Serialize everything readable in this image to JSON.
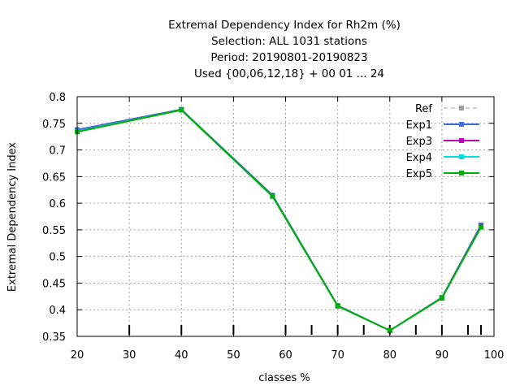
{
  "chart_data": {
    "type": "line",
    "title_lines": [
      "Extremal Dependency Index  for Rh2m (%)",
      "Selection: ALL    1031 stations",
      "Period: 20190801-20190823",
      "Used {00,06,12,18} + 00 01 ... 24"
    ],
    "xlabel": "classes %",
    "ylabel": "Extremal Dependency Index",
    "xlim": [
      20,
      100
    ],
    "ylim": [
      0.35,
      0.8
    ],
    "x_ticks": [
      20,
      30,
      40,
      50,
      60,
      70,
      80,
      90,
      100
    ],
    "x_tick_labels": [
      "20",
      "30",
      "40",
      "50",
      "60",
      "70",
      "80",
      "90",
      "100"
    ],
    "y_ticks": [
      0.35,
      0.4,
      0.45,
      0.5,
      0.55,
      0.6,
      0.65,
      0.7,
      0.75,
      0.8
    ],
    "y_tick_labels": [
      "0.35",
      "0.4",
      "0.45",
      "0.5",
      "0.55",
      "0.6",
      "0.65",
      "0.7",
      "0.75",
      "0.8"
    ],
    "class_marks_x": [
      30,
      40,
      50,
      60,
      65,
      70,
      75,
      80,
      85,
      90,
      95,
      97.5
    ],
    "grid": true,
    "legend_position": "top-right",
    "x": [
      20,
      40,
      57.5,
      70,
      80,
      90,
      97.5
    ],
    "series": [
      {
        "name": "Ref",
        "color": "#a0a0a0",
        "dashed": true,
        "values": [
          0.736,
          0.776,
          0.614,
          0.407,
          0.361,
          0.423,
          0.556
        ]
      },
      {
        "name": "Exp1",
        "color": "#4169e1",
        "dashed": false,
        "values": [
          0.738,
          0.776,
          0.615,
          0.408,
          0.361,
          0.423,
          0.559
        ]
      },
      {
        "name": "Exp3",
        "color": "#c000c0",
        "dashed": false,
        "values": [
          0.735,
          0.775,
          0.613,
          0.407,
          0.361,
          0.422,
          0.556
        ]
      },
      {
        "name": "Exp4",
        "color": "#00e0e0",
        "dashed": false,
        "values": [
          0.735,
          0.775,
          0.613,
          0.407,
          0.361,
          0.422,
          0.555
        ]
      },
      {
        "name": "Exp5",
        "color": "#00b000",
        "dashed": false,
        "values": [
          0.734,
          0.775,
          0.613,
          0.407,
          0.361,
          0.422,
          0.555
        ]
      }
    ]
  }
}
